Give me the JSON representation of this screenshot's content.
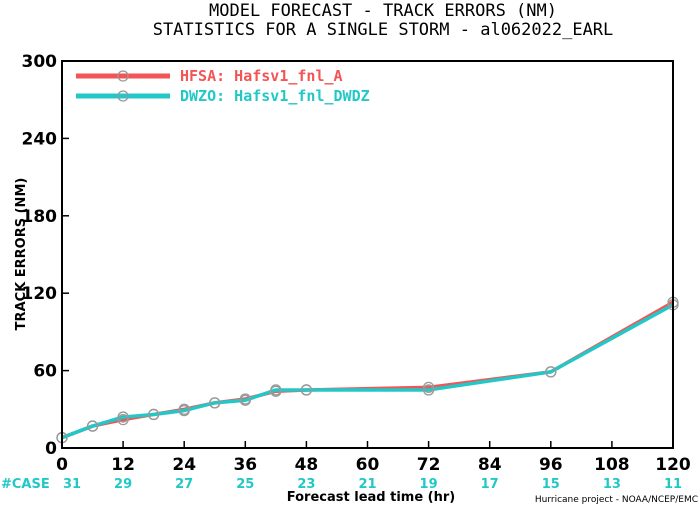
{
  "chart_data": {
    "type": "line",
    "title": "MODEL FORECAST - TRACK ERRORS (NM)",
    "subtitle": "STATISTICS FOR A SINGLE STORM - al062022_EARL",
    "xlabel": "Forecast lead time (hr)",
    "ylabel": "TRACK ERRORS (NM)",
    "xlim": [
      0,
      120
    ],
    "ylim": [
      0,
      300
    ],
    "x_ticks": [
      0,
      12,
      24,
      36,
      48,
      60,
      72,
      84,
      96,
      108,
      120
    ],
    "y_ticks": [
      0,
      60,
      120,
      180,
      240,
      300
    ],
    "x_tick_labels": [
      "0",
      "12",
      "24",
      "36",
      "48",
      "60",
      "72",
      "84",
      "96",
      "108",
      "120"
    ],
    "y_tick_labels": [
      "0",
      "60",
      "120",
      "180",
      "240",
      "300"
    ],
    "legend_position": "top-left",
    "series": [
      {
        "name": "HFSA: Hafsv1_fnl_A",
        "color": "#f25555",
        "x": [
          0,
          6,
          12,
          18,
          24,
          30,
          36,
          42,
          48,
          72,
          96,
          120
        ],
        "values": [
          8,
          17,
          22,
          26,
          30,
          35,
          38,
          44,
          45,
          47,
          59,
          113
        ]
      },
      {
        "name": "DWZO: Hafsv1_fnl_DWDZ",
        "color": "#22c8c8",
        "x": [
          0,
          6,
          12,
          18,
          24,
          30,
          36,
          42,
          48,
          72,
          96,
          120
        ],
        "values": [
          8,
          17,
          24,
          26,
          29,
          35,
          37,
          45,
          45,
          45,
          59,
          111
        ]
      }
    ],
    "case_label": "#CASE",
    "case_color": "#22c8c8",
    "case_counts": [
      {
        "x": 0,
        "label": "31"
      },
      {
        "x": 12,
        "label": "29"
      },
      {
        "x": 24,
        "label": "27"
      },
      {
        "x": 36,
        "label": "25"
      },
      {
        "x": 48,
        "label": "23"
      },
      {
        "x": 60,
        "label": "21"
      },
      {
        "x": 72,
        "label": "19"
      },
      {
        "x": 84,
        "label": "17"
      },
      {
        "x": 96,
        "label": "15"
      },
      {
        "x": 108,
        "label": "13"
      },
      {
        "x": 120,
        "label": "11"
      }
    ],
    "credit": "Hurricane project - NOAA/NCEP/EMC"
  }
}
